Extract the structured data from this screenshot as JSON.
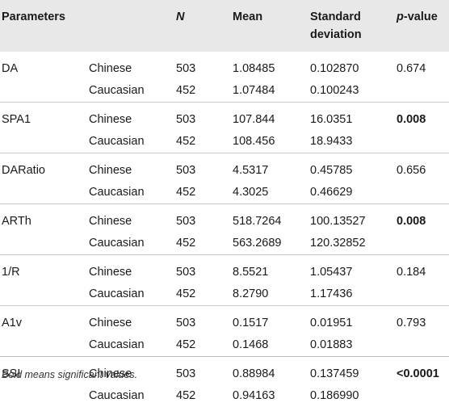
{
  "headers": {
    "parameters": "Parameters",
    "n": "N",
    "mean": "Mean",
    "sd_line1": "Standard",
    "sd_line2": "deviation",
    "p_italic": "p",
    "p_rest": "-value"
  },
  "rows": [
    {
      "param": "DA",
      "group": "Chinese",
      "n": "503",
      "mean": "1.08485",
      "sd": "0.102870",
      "p": "0.674",
      "p_bold": false
    },
    {
      "param": "",
      "group": "Caucasian",
      "n": "452",
      "mean": "1.07484",
      "sd": "0.100243",
      "p": "",
      "p_bold": false
    },
    {
      "param": "SPA1",
      "group": "Chinese",
      "n": "503",
      "mean": "107.844",
      "sd": "16.0351",
      "p": "0.008",
      "p_bold": true
    },
    {
      "param": "",
      "group": "Caucasian",
      "n": "452",
      "mean": "108.456",
      "sd": "18.9433",
      "p": "",
      "p_bold": false
    },
    {
      "param": "DARatio",
      "group": "Chinese",
      "n": "503",
      "mean": "4.5317",
      "sd": "0.45785",
      "p": "0.656",
      "p_bold": false
    },
    {
      "param": "",
      "group": "Caucasian",
      "n": "452",
      "mean": "4.3025",
      "sd": "0.46629",
      "p": "",
      "p_bold": false
    },
    {
      "param": "ARTh",
      "group": "Chinese",
      "n": "503",
      "mean": "518.7264",
      "sd": "100.13527",
      "p": "0.008",
      "p_bold": true
    },
    {
      "param": "",
      "group": "Caucasian",
      "n": "452",
      "mean": "563.2689",
      "sd": "120.32852",
      "p": "",
      "p_bold": false
    },
    {
      "param": "1/R",
      "group": "Chinese",
      "n": "503",
      "mean": "8.5521",
      "sd": "1.05437",
      "p": "0.184",
      "p_bold": false
    },
    {
      "param": "",
      "group": "Caucasian",
      "n": "452",
      "mean": "8.2790",
      "sd": "1.17436",
      "p": "",
      "p_bold": false
    },
    {
      "param": "A1v",
      "group": "Chinese",
      "n": "503",
      "mean": "0.1517",
      "sd": "0.01951",
      "p": "0.793",
      "p_bold": false
    },
    {
      "param": "",
      "group": "Caucasian",
      "n": "452",
      "mean": "0.1468",
      "sd": "0.01883",
      "p": "",
      "p_bold": false
    },
    {
      "param": "SSI",
      "group": "Chinese",
      "n": "503",
      "mean": "0.88984",
      "sd": "0.137459",
      "p": "<0.0001",
      "p_bold": true
    },
    {
      "param": "",
      "group": "Caucasian",
      "n": "452",
      "mean": "0.94163",
      "sd": "0.186990",
      "p": "",
      "p_bold": false
    }
  ],
  "footnote": "Bold means significant values."
}
